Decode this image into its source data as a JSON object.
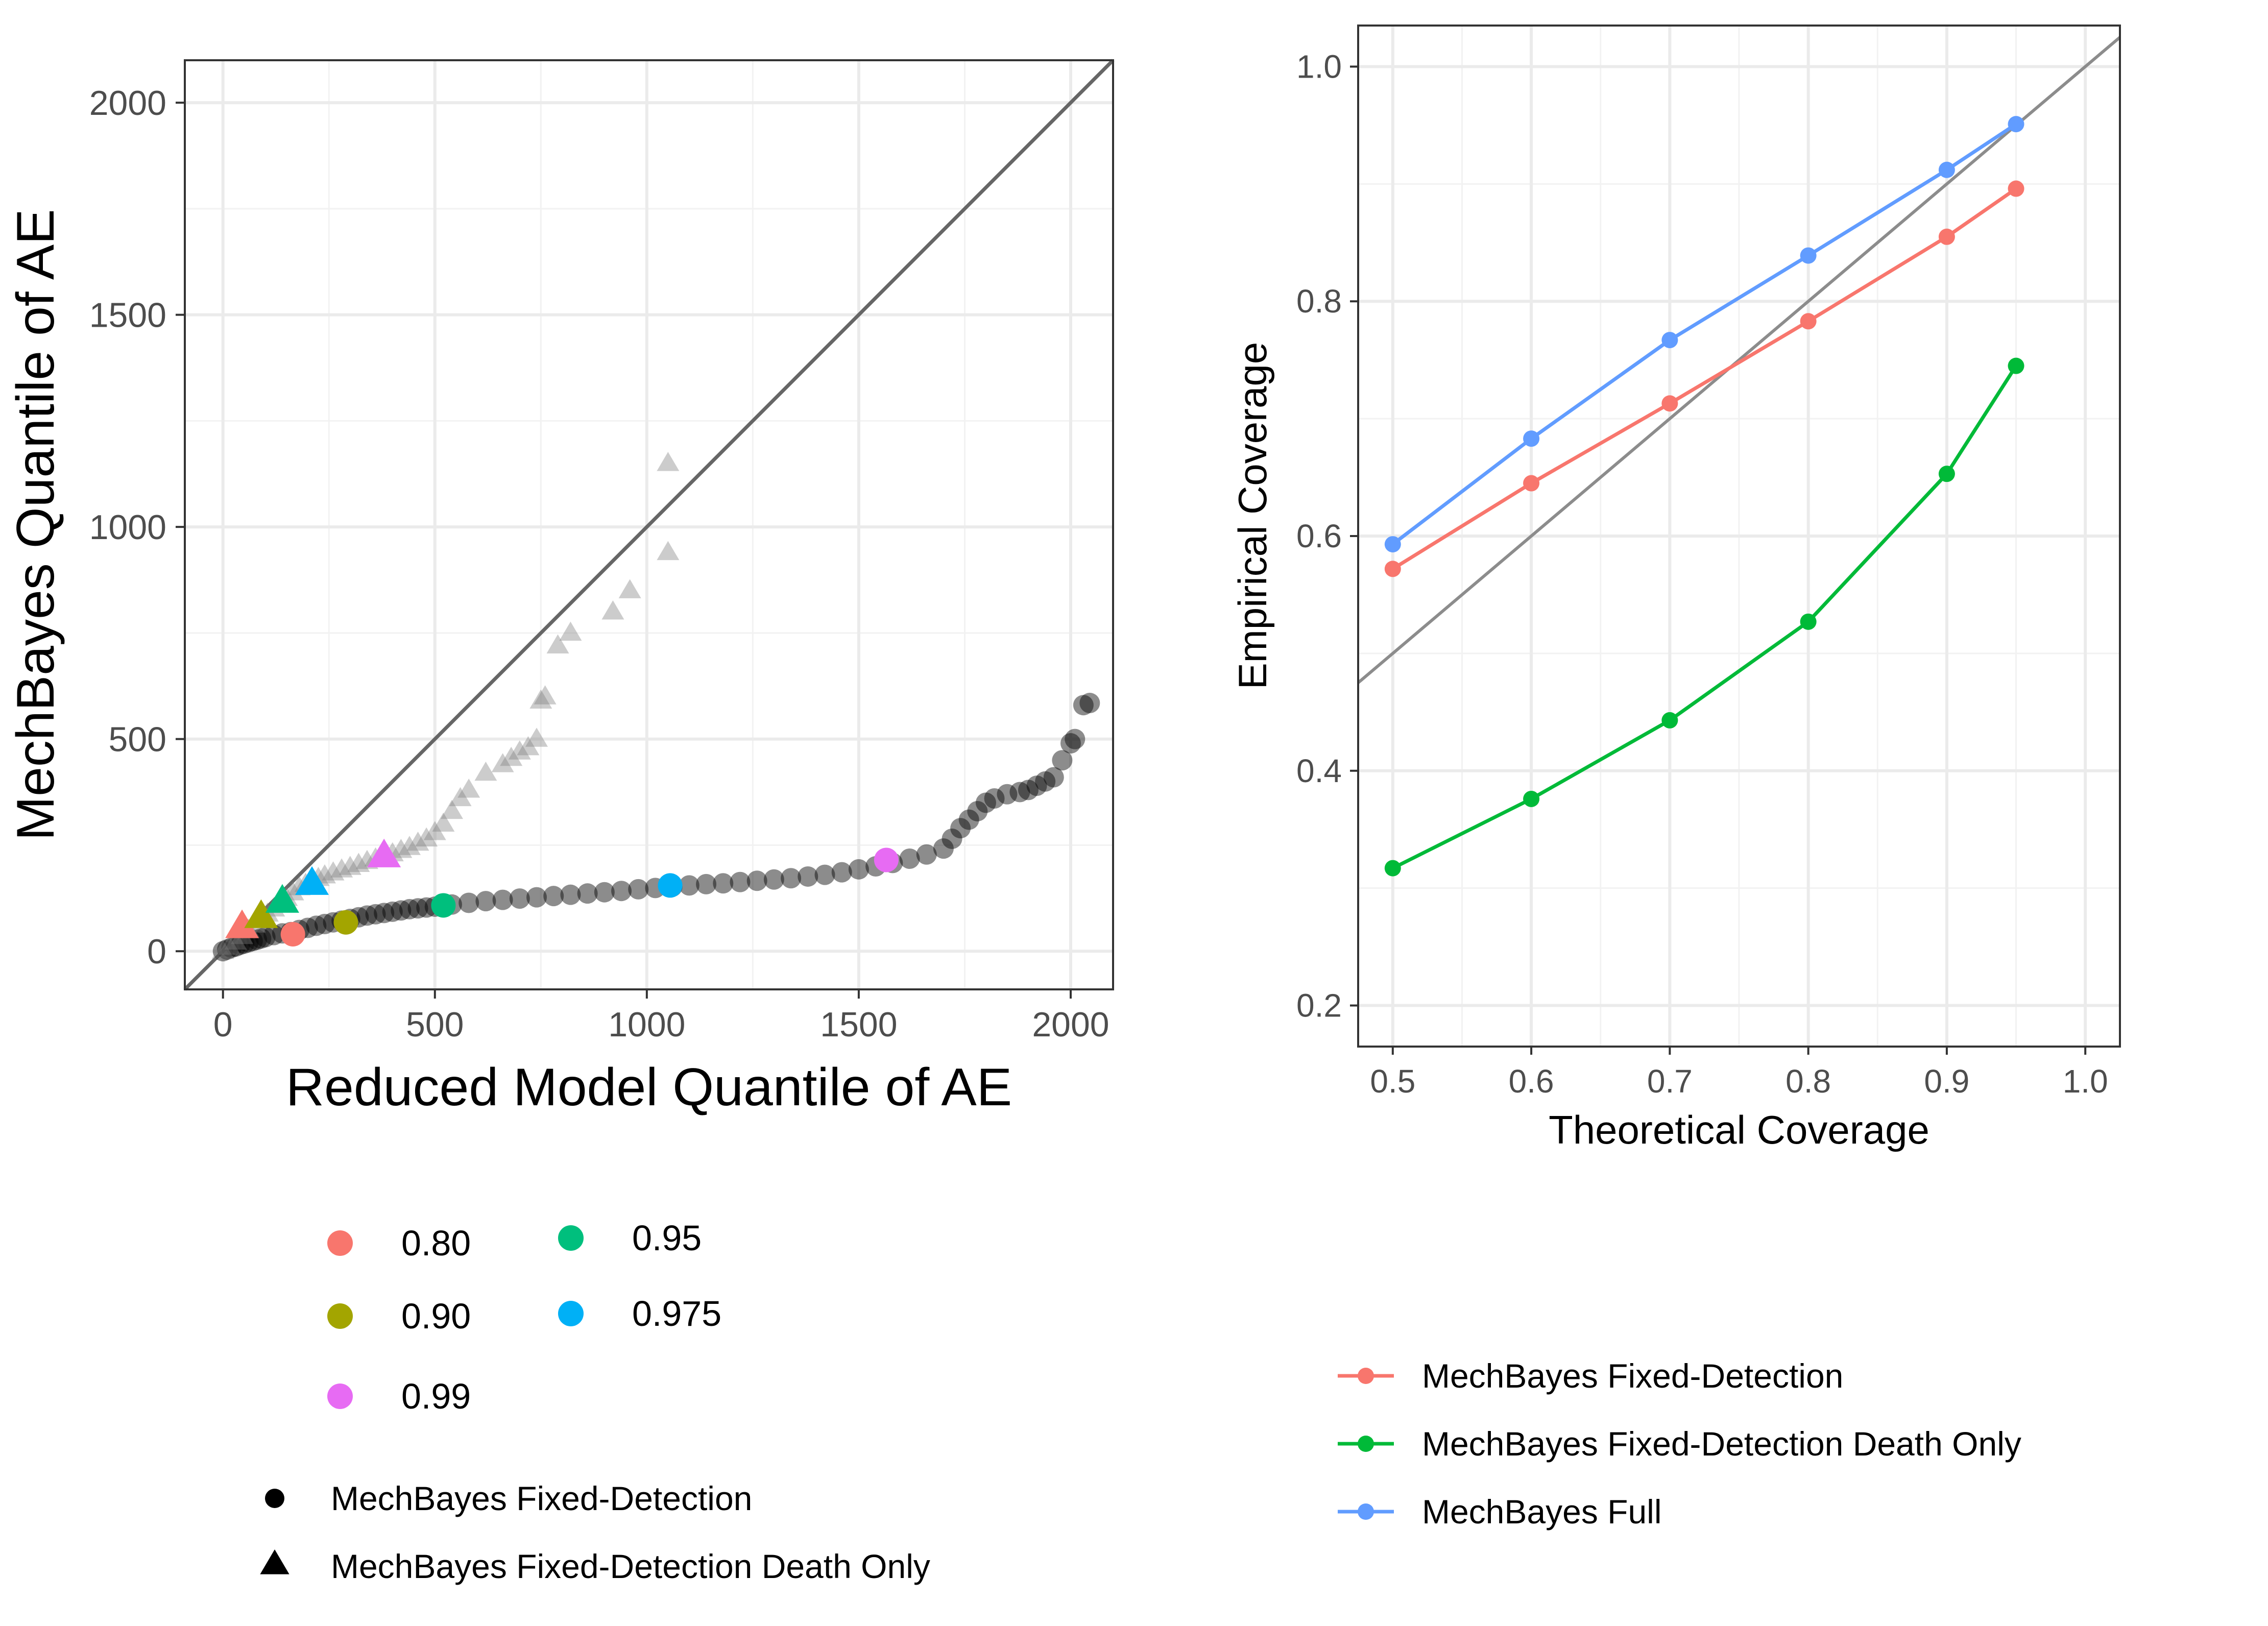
{
  "chart_data": [
    {
      "type": "scatter",
      "xlabel": "Reduced Model Quantile of AE",
      "ylabel": "MechBayes Quantile of AE",
      "xlim": [
        -90,
        2100
      ],
      "ylim": [
        -90,
        2100
      ],
      "x_ticks": [
        0,
        500,
        1000,
        1500,
        2000
      ],
      "y_ticks": [
        0,
        500,
        1000,
        1500,
        2000
      ],
      "x_tick_labels": [
        "0",
        "500",
        "1000",
        "1500",
        "2000"
      ],
      "y_tick_labels": [
        "0",
        "500",
        "1000",
        "1500",
        "2000"
      ],
      "reference_line": "y = x",
      "grid": true,
      "legend_position": "bottom",
      "quantile_legend": [
        {
          "label": "0.80",
          "color": "#F8766D"
        },
        {
          "label": "0.90",
          "color": "#A3A500"
        },
        {
          "label": "0.95",
          "color": "#00BF7D"
        },
        {
          "label": "0.975",
          "color": "#00B0F6"
        },
        {
          "label": "0.99",
          "color": "#E76BF3"
        }
      ],
      "shape_legend": [
        {
          "label": "MechBayes Fixed-Detection",
          "shape": "circle"
        },
        {
          "label": "MechBayes Fixed-Detection Death Only",
          "shape": "triangle"
        }
      ],
      "series": [
        {
          "name": "MechBayes Fixed-Detection",
          "shape": "circle",
          "points": [
            [
              0,
              0
            ],
            [
              10,
              4
            ],
            [
              20,
              8
            ],
            [
              30,
              11
            ],
            [
              40,
              15
            ],
            [
              50,
              18
            ],
            [
              60,
              21
            ],
            [
              70,
              24
            ],
            [
              80,
              27
            ],
            [
              90,
              30
            ],
            [
              100,
              33
            ],
            [
              120,
              38
            ],
            [
              140,
              42
            ],
            [
              160,
              45
            ],
            [
              180,
              50
            ],
            [
              200,
              55
            ],
            [
              220,
              60
            ],
            [
              240,
              64
            ],
            [
              260,
              68
            ],
            [
              280,
              72
            ],
            [
              300,
              76
            ],
            [
              320,
              80
            ],
            [
              340,
              84
            ],
            [
              360,
              87
            ],
            [
              380,
              90
            ],
            [
              400,
              93
            ],
            [
              420,
              96
            ],
            [
              440,
              99
            ],
            [
              460,
              101
            ],
            [
              480,
              103
            ],
            [
              500,
              105
            ],
            [
              540,
              110
            ],
            [
              580,
              114
            ],
            [
              620,
              118
            ],
            [
              660,
              121
            ],
            [
              700,
              124
            ],
            [
              740,
              127
            ],
            [
              780,
              130
            ],
            [
              820,
              133
            ],
            [
              860,
              136
            ],
            [
              900,
              139
            ],
            [
              940,
              142
            ],
            [
              980,
              146
            ],
            [
              1020,
              149
            ],
            [
              1060,
              152
            ],
            [
              1100,
              155
            ],
            [
              1140,
              158
            ],
            [
              1180,
              160
            ],
            [
              1220,
              163
            ],
            [
              1260,
              166
            ],
            [
              1300,
              169
            ],
            [
              1340,
              172
            ],
            [
              1380,
              176
            ],
            [
              1420,
              180
            ],
            [
              1460,
              186
            ],
            [
              1500,
              193
            ],
            [
              1540,
              200
            ],
            [
              1580,
              208
            ],
            [
              1620,
              218
            ],
            [
              1660,
              228
            ],
            [
              1700,
              242
            ],
            [
              1720,
              265
            ],
            [
              1740,
              290
            ],
            [
              1760,
              310
            ],
            [
              1780,
              330
            ],
            [
              1800,
              350
            ],
            [
              1820,
              360
            ],
            [
              1850,
              370
            ],
            [
              1880,
              375
            ],
            [
              1900,
              380
            ],
            [
              1920,
              390
            ],
            [
              1940,
              400
            ],
            [
              1960,
              410
            ],
            [
              1980,
              450
            ],
            [
              2000,
              490
            ],
            [
              2010,
              500
            ],
            [
              2030,
              580
            ],
            [
              2045,
              585
            ]
          ],
          "highlights": [
            {
              "quantile": "0.80",
              "x": 165,
              "y": 40
            },
            {
              "quantile": "0.90",
              "x": 290,
              "y": 68
            },
            {
              "quantile": "0.95",
              "x": 520,
              "y": 108
            },
            {
              "quantile": "0.975",
              "x": 1055,
              "y": 155
            },
            {
              "quantile": "0.99",
              "x": 1565,
              "y": 215
            }
          ]
        },
        {
          "name": "MechBayes Fixed-Detection Death Only",
          "shape": "triangle",
          "points": [
            [
              0,
              0
            ],
            [
              15,
              10
            ],
            [
              30,
              22
            ],
            [
              45,
              35
            ],
            [
              60,
              50
            ],
            [
              75,
              62
            ],
            [
              90,
              75
            ],
            [
              105,
              88
            ],
            [
              120,
              100
            ],
            [
              135,
              112
            ],
            [
              150,
              125
            ],
            [
              165,
              138
            ],
            [
              180,
              150
            ],
            [
              195,
              158
            ],
            [
              210,
              166
            ],
            [
              225,
              172
            ],
            [
              240,
              178
            ],
            [
              260,
              185
            ],
            [
              280,
              192
            ],
            [
              300,
              198
            ],
            [
              320,
              205
            ],
            [
              340,
              212
            ],
            [
              360,
              218
            ],
            [
              380,
              223
            ],
            [
              400,
              230
            ],
            [
              420,
              238
            ],
            [
              440,
              245
            ],
            [
              460,
              255
            ],
            [
              480,
              265
            ],
            [
              500,
              280
            ],
            [
              520,
              300
            ],
            [
              540,
              330
            ],
            [
              560,
              360
            ],
            [
              580,
              380
            ],
            [
              620,
              420
            ],
            [
              660,
              440
            ],
            [
              680,
              455
            ],
            [
              700,
              470
            ],
            [
              720,
              480
            ],
            [
              740,
              500
            ],
            [
              750,
              590
            ],
            [
              760,
              600
            ],
            [
              790,
              720
            ],
            [
              820,
              750
            ],
            [
              920,
              800
            ],
            [
              960,
              850
            ],
            [
              1050,
              940
            ],
            [
              1050,
              1150
            ]
          ],
          "highlights": [
            {
              "quantile": "0.80",
              "x": 45,
              "y": 58
            },
            {
              "quantile": "0.90",
              "x": 90,
              "y": 82
            },
            {
              "quantile": "0.95",
              "x": 140,
              "y": 118
            },
            {
              "quantile": "0.975",
              "x": 210,
              "y": 160
            },
            {
              "quantile": "0.99",
              "x": 380,
              "y": 225
            }
          ]
        }
      ]
    },
    {
      "type": "line",
      "xlabel": "Theoretical Coverage",
      "ylabel": "Empirical Coverage",
      "xlim": [
        0.475,
        1.025
      ],
      "ylim": [
        0.165,
        1.035
      ],
      "x_ticks": [
        0.5,
        0.6,
        0.7,
        0.8,
        0.9,
        1.0
      ],
      "y_ticks": [
        0.2,
        0.4,
        0.6,
        0.8,
        1.0
      ],
      "x_tick_labels": [
        "0.5",
        "0.6",
        "0.7",
        "0.8",
        "0.9",
        "1.0"
      ],
      "y_tick_labels": [
        "0.2",
        "0.4",
        "0.6",
        "0.8",
        "1.0"
      ],
      "reference_line": "y = x",
      "grid": true,
      "legend_position": "bottom",
      "x": [
        0.5,
        0.6,
        0.7,
        0.8,
        0.9,
        0.95
      ],
      "series": [
        {
          "name": "MechBayes Fixed-Detection",
          "color": "#F8766D",
          "values": [
            0.572,
            0.645,
            0.713,
            0.783,
            0.855,
            0.896
          ]
        },
        {
          "name": "MechBayes Fixed-Detection Death Only",
          "color": "#00BA38",
          "values": [
            0.317,
            0.376,
            0.443,
            0.527,
            0.653,
            0.745
          ]
        },
        {
          "name": "MechBayes Full",
          "color": "#619CFF",
          "values": [
            0.593,
            0.683,
            0.767,
            0.839,
            0.912,
            0.951
          ]
        }
      ]
    }
  ]
}
